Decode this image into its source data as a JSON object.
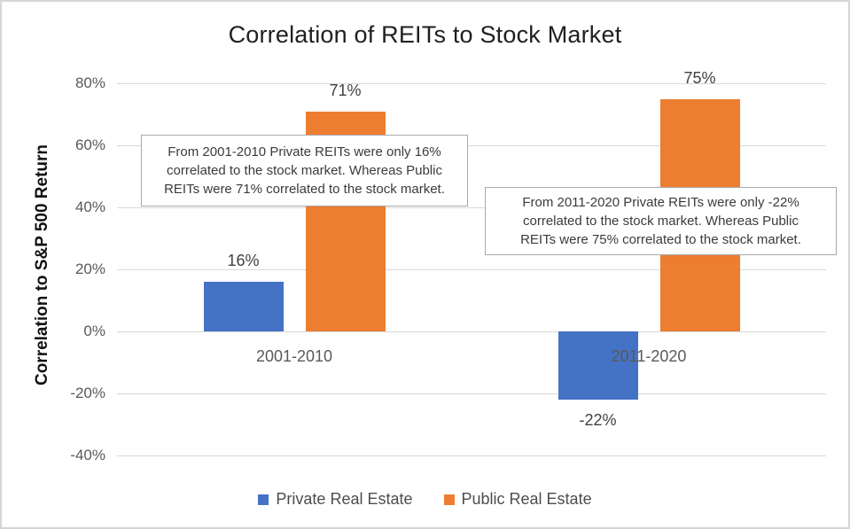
{
  "title": "Correlation of REITs to Stock Market",
  "y_axis_title": "Correlation to S&P 500 Return",
  "colors": {
    "private_blue": "#4472C4",
    "public_orange": "#ED7D31",
    "gridline": "#D9D9D9",
    "tick_label": "#595959",
    "data_label": "#404040",
    "chart_border": "#D6D6D6",
    "note_border": "#A9A9A9"
  },
  "chart_data": {
    "type": "bar",
    "title": "Correlation of REITs to Stock Market",
    "xlabel": "",
    "ylabel": "Correlation to S&P 500 Return",
    "categories": [
      "2001-2010",
      "2011-2020"
    ],
    "series": [
      {
        "name": "Private Real Estate",
        "color": "#4472C4",
        "values": [
          16,
          -22
        ]
      },
      {
        "name": "Public Real Estate",
        "color": "#ED7D31",
        "values": [
          71,
          75
        ]
      }
    ],
    "data_labels": [
      [
        "16%",
        "-22%"
      ],
      [
        "71%",
        "75%"
      ]
    ],
    "y_ticks": [
      80,
      60,
      40,
      20,
      0,
      -20,
      -40
    ],
    "y_tick_labels": [
      "80%",
      "60%",
      "40%",
      "20%",
      "0%",
      "-20%",
      "-40%"
    ],
    "ylim": [
      -40,
      80
    ],
    "grid": true,
    "legend_position": "bottom"
  },
  "annotations": [
    {
      "text": "From 2001-2010  Private REITs were only 16%\ncorrelated to the stock market. Whereas Public\nREITs were 71% correlated to the stock market."
    },
    {
      "text": "From 2011-2020  Private REITs were only -22%\ncorrelated to the stock market. Whereas Public\nREITs were 75% correlated to the stock market."
    }
  ]
}
